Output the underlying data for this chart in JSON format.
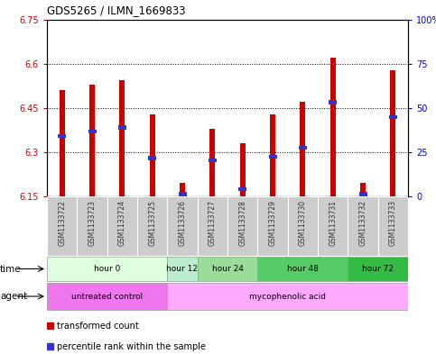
{
  "title": "GDS5265 / ILMN_1669833",
  "samples": [
    "GSM1133722",
    "GSM1133723",
    "GSM1133724",
    "GSM1133725",
    "GSM1133726",
    "GSM1133727",
    "GSM1133728",
    "GSM1133729",
    "GSM1133730",
    "GSM1133731",
    "GSM1133732",
    "GSM1133733"
  ],
  "bar_tops": [
    6.51,
    6.53,
    6.545,
    6.43,
    6.195,
    6.38,
    6.33,
    6.43,
    6.47,
    6.62,
    6.195,
    6.58
  ],
  "blue_markers": [
    6.355,
    6.37,
    6.385,
    6.28,
    6.157,
    6.272,
    6.175,
    6.285,
    6.315,
    6.47,
    6.157,
    6.42
  ],
  "ymin": 6.15,
  "ymax": 6.75,
  "yticks": [
    6.15,
    6.3,
    6.45,
    6.6,
    6.75
  ],
  "ytick_labels": [
    "6.15",
    "6.3",
    "6.45",
    "6.6",
    "6.75"
  ],
  "right_yticks_pct": [
    0,
    25,
    50,
    75,
    100
  ],
  "right_ytick_labels": [
    "0",
    "25",
    "50",
    "75",
    "100%"
  ],
  "bar_color": "#cc0000",
  "blue_color": "#3333cc",
  "grid_yticks": [
    6.3,
    6.45,
    6.6
  ],
  "time_groups": [
    {
      "label": "hour 0",
      "start": 0,
      "end": 4,
      "color": "#ddffdd"
    },
    {
      "label": "hour 12",
      "start": 4,
      "end": 5,
      "color": "#bbeecc"
    },
    {
      "label": "hour 24",
      "start": 5,
      "end": 7,
      "color": "#99dd99"
    },
    {
      "label": "hour 48",
      "start": 7,
      "end": 10,
      "color": "#55cc66"
    },
    {
      "label": "hour 72",
      "start": 10,
      "end": 12,
      "color": "#33bb44"
    }
  ],
  "agent_groups": [
    {
      "label": "untreated control",
      "start": 0,
      "end": 4,
      "color": "#ee77ee"
    },
    {
      "label": "mycophenolic acid",
      "start": 4,
      "end": 12,
      "color": "#ffaaff"
    }
  ],
  "time_row_label": "time",
  "agent_row_label": "agent",
  "legend_red_label": "transformed count",
  "legend_blue_label": "percentile rank within the sample",
  "bar_width": 0.18,
  "bg_color": "#ffffff",
  "left_tick_color": "#cc0000",
  "right_tick_color": "#0000cc",
  "sample_bg_color": "#cccccc",
  "sample_text_color": "#333333"
}
